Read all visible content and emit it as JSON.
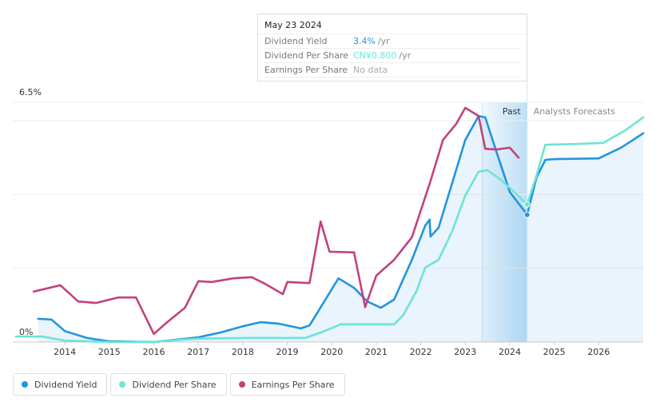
{
  "chart_data": {
    "type": "line",
    "xlim": [
      2012.83,
      2027.0
    ],
    "xticks": [
      2014,
      2015,
      2016,
      2017,
      2018,
      2019,
      2020,
      2021,
      2022,
      2023,
      2024,
      2025,
      2026
    ],
    "ylim": [
      0,
      6.5
    ],
    "yticks": [
      {
        "value": 0,
        "label": "0%"
      },
      {
        "value": 6.5,
        "label": "6.5%"
      }
    ],
    "gridlines": [
      2,
      4,
      6
    ],
    "past_label": "Past",
    "forecast_label": "Analysts Forecasts",
    "past_range": [
      2023.38,
      2024.39
    ],
    "tooltip": {
      "date": "May 23 2024",
      "rows": [
        {
          "label": "Dividend Yield",
          "value": "3.4%",
          "unit": "/yr",
          "color": "#2394df"
        },
        {
          "label": "Dividend Per Share",
          "value": "CN¥0.800",
          "unit": "/yr",
          "color": "#6de4d4"
        },
        {
          "label": "Earnings Per Share",
          "value": "No data",
          "color": "#aaaaaa"
        }
      ]
    },
    "series": [
      {
        "name": "Dividend Yield",
        "color": "#2394df",
        "fill": true,
        "x": [
          2013.4,
          2013.7,
          2014.0,
          2014.5,
          2015.0,
          2016.0,
          2017.0,
          2017.5,
          2018.0,
          2018.4,
          2018.8,
          2019.3,
          2019.5,
          2019.8,
          2020.15,
          2020.5,
          2020.8,
          2021.1,
          2021.4,
          2021.8,
          2022.1,
          2022.2,
          2022.22,
          2022.4,
          2022.7,
          2023.0,
          2023.3,
          2023.45,
          2023.7,
          2024.0,
          2024.3,
          2024.39,
          2024.6,
          2024.8,
          2025.0,
          2026.0,
          2026.5,
          2027.0
        ],
        "values": [
          0.63,
          0.61,
          0.3,
          0.11,
          0.02,
          0,
          0.13,
          0.26,
          0.43,
          0.54,
          0.5,
          0.37,
          0.45,
          1.04,
          1.73,
          1.47,
          1.1,
          0.93,
          1.15,
          2.23,
          3.16,
          3.32,
          2.86,
          3.1,
          4.29,
          5.48,
          6.13,
          6.09,
          5.16,
          4.07,
          3.6,
          3.45,
          4.46,
          4.94,
          4.96,
          4.98,
          5.27,
          5.66
        ]
      },
      {
        "name": "Dividend Per Share",
        "color": "#6de4d4",
        "fill": false,
        "x": [
          2012.9,
          2013.5,
          2014.0,
          2015.0,
          2016.0,
          2016.6,
          2017.0,
          2018.0,
          2019.0,
          2019.4,
          2019.8,
          2020.2,
          2021.4,
          2021.6,
          2021.9,
          2022.1,
          2022.4,
          2022.7,
          2023.0,
          2023.3,
          2023.5,
          2023.8,
          2024.1,
          2024.39,
          2024.6,
          2024.8,
          2025.5,
          2026.1,
          2026.6,
          2027.0
        ],
        "values": [
          0.15,
          0.15,
          0.04,
          0,
          0,
          0.06,
          0.09,
          0.11,
          0.11,
          0.11,
          0.28,
          0.48,
          0.48,
          0.72,
          1.37,
          2.02,
          2.23,
          2.99,
          3.97,
          4.62,
          4.66,
          4.4,
          4.07,
          3.73,
          4.51,
          5.35,
          5.37,
          5.4,
          5.74,
          6.09
        ]
      },
      {
        "name": "Earnings Per Share",
        "color": "#c3417d",
        "fill": false,
        "x": [
          2013.3,
          2013.9,
          2014.3,
          2014.7,
          2015.2,
          2015.6,
          2016.0,
          2016.3,
          2016.7,
          2017.0,
          2017.3,
          2017.8,
          2018.2,
          2018.5,
          2018.9,
          2019.0,
          2019.5,
          2019.75,
          2019.95,
          2020.5,
          2020.75,
          2021.0,
          2021.4,
          2021.8,
          2022.2,
          2022.5,
          2022.8,
          2023.0,
          2023.3,
          2023.45,
          2023.7,
          2024.0,
          2024.2
        ],
        "values": [
          1.37,
          1.54,
          1.1,
          1.06,
          1.21,
          1.21,
          0.22,
          0.54,
          0.93,
          1.65,
          1.63,
          1.73,
          1.76,
          1.58,
          1.3,
          1.63,
          1.6,
          3.27,
          2.45,
          2.43,
          0.95,
          1.8,
          2.23,
          2.84,
          4.29,
          5.48,
          5.92,
          6.35,
          6.13,
          5.24,
          5.22,
          5.27,
          5.0
        ]
      }
    ],
    "highlight_x": 2024.39
  }
}
